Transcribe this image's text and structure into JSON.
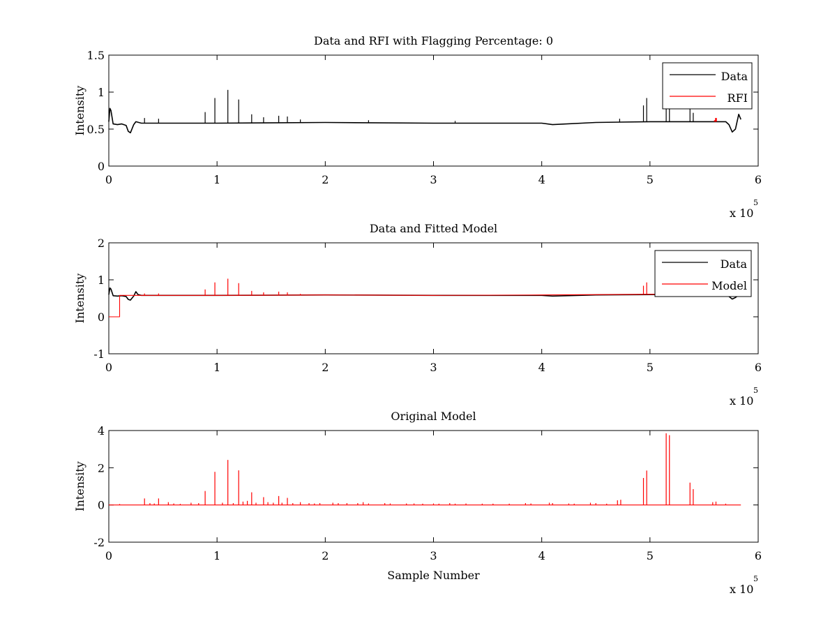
{
  "figure": {
    "background": "#ffffff"
  },
  "chart_data": [
    {
      "type": "line",
      "title": "Data and RFI with Flagging Percentage: 0",
      "xlabel": "",
      "ylabel": "Intensity",
      "xlim": [
        0,
        6
      ],
      "ylim": [
        0,
        1.5
      ],
      "xticks": [
        0,
        1,
        2,
        3,
        4,
        5,
        6
      ],
      "yticks": [
        0,
        0.5,
        1,
        1.5
      ],
      "x_tick_labels": [
        "0",
        "1",
        "2",
        "3",
        "4",
        "5",
        "6"
      ],
      "y_tick_labels": [
        "0",
        "0.5",
        "1",
        "1.5"
      ],
      "x_exponent": "x 10",
      "x_exponent_power": "5",
      "grid": false,
      "legend": "top-right",
      "series": [
        {
          "name": "Data",
          "color": "#000000",
          "role": "data",
          "baseline": [
            [
              0,
              0.6
            ],
            [
              0.01,
              0.78
            ],
            [
              0.02,
              0.75
            ],
            [
              0.04,
              0.57
            ],
            [
              0.08,
              0.56
            ],
            [
              0.12,
              0.57
            ],
            [
              0.16,
              0.55
            ],
            [
              0.18,
              0.47
            ],
            [
              0.2,
              0.45
            ],
            [
              0.23,
              0.56
            ],
            [
              0.25,
              0.6
            ],
            [
              0.3,
              0.58
            ],
            [
              1,
              0.58
            ],
            [
              2,
              0.59
            ],
            [
              3,
              0.58
            ],
            [
              4,
              0.58
            ],
            [
              4.1,
              0.56
            ],
            [
              4.5,
              0.59
            ],
            [
              5,
              0.6
            ],
            [
              5.7,
              0.6
            ],
            [
              5.73,
              0.56
            ],
            [
              5.76,
              0.46
            ],
            [
              5.79,
              0.5
            ],
            [
              5.82,
              0.7
            ],
            [
              5.84,
              0.63
            ]
          ],
          "spikes": [
            [
              0.33,
              0.65
            ],
            [
              0.46,
              0.64
            ],
            [
              0.89,
              0.73
            ],
            [
              0.98,
              0.92
            ],
            [
              1.1,
              1.03
            ],
            [
              1.2,
              0.9
            ],
            [
              1.32,
              0.7
            ],
            [
              1.43,
              0.66
            ],
            [
              1.57,
              0.68
            ],
            [
              1.65,
              0.67
            ],
            [
              1.77,
              0.63
            ],
            [
              2.4,
              0.62
            ],
            [
              3.2,
              0.61
            ],
            [
              4.72,
              0.64
            ],
            [
              4.94,
              0.82
            ],
            [
              4.97,
              0.92
            ],
            [
              5.15,
              0.82
            ],
            [
              5.18,
              0.8
            ],
            [
              5.37,
              0.78
            ],
            [
              5.4,
              0.72
            ]
          ]
        },
        {
          "name": "RFI",
          "color": "#ff0000",
          "role": "rfi",
          "spikes": [
            [
              5.6,
              0.62
            ],
            [
              5.61,
              0.65
            ]
          ]
        }
      ]
    },
    {
      "type": "line",
      "title": "Data and Fitted Model",
      "xlabel": "",
      "ylabel": "Intensity",
      "xlim": [
        0,
        6
      ],
      "ylim": [
        -1,
        2
      ],
      "xticks": [
        0,
        1,
        2,
        3,
        4,
        5,
        6
      ],
      "yticks": [
        -1,
        0,
        1,
        2
      ],
      "x_tick_labels": [
        "0",
        "1",
        "2",
        "3",
        "4",
        "5",
        "6"
      ],
      "y_tick_labels": [
        "-1",
        "0",
        "1",
        "2"
      ],
      "x_exponent": "x 10",
      "x_exponent_power": "5",
      "grid": false,
      "legend": "top-right",
      "series": [
        {
          "name": "Data",
          "color": "#000000",
          "role": "data",
          "baseline": [
            [
              0,
              0.6
            ],
            [
              0.01,
              0.78
            ],
            [
              0.02,
              0.75
            ],
            [
              0.04,
              0.57
            ],
            [
              0.08,
              0.56
            ],
            [
              0.12,
              0.57
            ],
            [
              0.16,
              0.55
            ],
            [
              0.18,
              0.47
            ],
            [
              0.2,
              0.45
            ],
            [
              0.23,
              0.56
            ],
            [
              0.25,
              0.68
            ],
            [
              0.27,
              0.6
            ],
            [
              0.3,
              0.58
            ],
            [
              1,
              0.58
            ],
            [
              2,
              0.59
            ],
            [
              3,
              0.58
            ],
            [
              4,
              0.58
            ],
            [
              4.1,
              0.56
            ],
            [
              4.5,
              0.59
            ],
            [
              5,
              0.6
            ],
            [
              5.7,
              0.6
            ],
            [
              5.73,
              0.55
            ],
            [
              5.76,
              0.48
            ],
            [
              5.79,
              0.52
            ],
            [
              5.84,
              0.63
            ]
          ],
          "spikes": []
        },
        {
          "name": "Model",
          "color": "#ff0000",
          "role": "model",
          "baseline": [
            [
              0,
              0
            ],
            [
              0.1,
              0
            ],
            [
              0.1,
              0.58
            ],
            [
              1,
              0.58
            ],
            [
              2,
              0.59
            ],
            [
              3,
              0.58
            ],
            [
              4,
              0.59
            ],
            [
              5,
              0.61
            ],
            [
              5.84,
              0.62
            ]
          ],
          "spikes": [
            [
              0.33,
              0.63
            ],
            [
              0.46,
              0.63
            ],
            [
              0.89,
              0.74
            ],
            [
              0.98,
              0.93
            ],
            [
              1.1,
              1.03
            ],
            [
              1.2,
              0.91
            ],
            [
              1.32,
              0.7
            ],
            [
              1.43,
              0.66
            ],
            [
              1.57,
              0.68
            ],
            [
              1.65,
              0.66
            ],
            [
              1.77,
              0.62
            ],
            [
              4.94,
              0.84
            ],
            [
              4.97,
              0.93
            ]
          ]
        }
      ]
    },
    {
      "type": "line",
      "title": "Original Model",
      "xlabel": "Sample Number",
      "ylabel": "Intensity",
      "xlim": [
        0,
        6
      ],
      "ylim": [
        -2,
        4
      ],
      "xticks": [
        0,
        1,
        2,
        3,
        4,
        5,
        6
      ],
      "yticks": [
        -2,
        0,
        2,
        4
      ],
      "x_tick_labels": [
        "0",
        "1",
        "2",
        "3",
        "4",
        "5",
        "6"
      ],
      "y_tick_labels": [
        "-2",
        "0",
        "2",
        "4"
      ],
      "x_exponent": "x 10",
      "x_exponent_power": "5",
      "grid": false,
      "legend": "none",
      "series": [
        {
          "color": "#ff0000",
          "role": "model",
          "baseline": [
            [
              0,
              0
            ],
            [
              5.84,
              0
            ]
          ],
          "spikes": [
            [
              0.1,
              0.05
            ],
            [
              0.33,
              0.35
            ],
            [
              0.38,
              0.1
            ],
            [
              0.42,
              0.08
            ],
            [
              0.46,
              0.35
            ],
            [
              0.55,
              0.15
            ],
            [
              0.6,
              0.08
            ],
            [
              0.66,
              0.06
            ],
            [
              0.76,
              0.12
            ],
            [
              0.83,
              0.1
            ],
            [
              0.89,
              0.75
            ],
            [
              0.98,
              1.78
            ],
            [
              1.05,
              0.12
            ],
            [
              1.1,
              2.42
            ],
            [
              1.15,
              0.1
            ],
            [
              1.2,
              1.86
            ],
            [
              1.24,
              0.18
            ],
            [
              1.28,
              0.22
            ],
            [
              1.32,
              0.68
            ],
            [
              1.36,
              0.12
            ],
            [
              1.43,
              0.42
            ],
            [
              1.47,
              0.15
            ],
            [
              1.52,
              0.12
            ],
            [
              1.57,
              0.48
            ],
            [
              1.6,
              0.12
            ],
            [
              1.65,
              0.38
            ],
            [
              1.7,
              0.1
            ],
            [
              1.77,
              0.15
            ],
            [
              1.85,
              0.1
            ],
            [
              1.9,
              0.08
            ],
            [
              1.95,
              0.1
            ],
            [
              2.07,
              0.12
            ],
            [
              2.12,
              0.1
            ],
            [
              2.2,
              0.1
            ],
            [
              2.3,
              0.1
            ],
            [
              2.35,
              0.15
            ],
            [
              2.4,
              0.08
            ],
            [
              2.55,
              0.1
            ],
            [
              2.6,
              0.08
            ],
            [
              2.75,
              0.08
            ],
            [
              2.82,
              0.08
            ],
            [
              2.9,
              0.07
            ],
            [
              3.0,
              0.08
            ],
            [
              3.05,
              0.07
            ],
            [
              3.15,
              0.1
            ],
            [
              3.2,
              0.07
            ],
            [
              3.3,
              0.08
            ],
            [
              3.45,
              0.07
            ],
            [
              3.55,
              0.07
            ],
            [
              3.7,
              0.07
            ],
            [
              3.85,
              0.1
            ],
            [
              3.9,
              0.08
            ],
            [
              4.07,
              0.12
            ],
            [
              4.1,
              0.1
            ],
            [
              4.25,
              0.08
            ],
            [
              4.3,
              0.07
            ],
            [
              4.45,
              0.12
            ],
            [
              4.5,
              0.1
            ],
            [
              4.6,
              0.07
            ],
            [
              4.7,
              0.25
            ],
            [
              4.73,
              0.28
            ],
            [
              4.94,
              1.45
            ],
            [
              4.97,
              1.85
            ],
            [
              5.15,
              3.85
            ],
            [
              5.18,
              3.75
            ],
            [
              5.37,
              1.2
            ],
            [
              5.4,
              0.85
            ],
            [
              5.58,
              0.15
            ],
            [
              5.61,
              0.18
            ],
            [
              5.7,
              0.07
            ]
          ]
        }
      ]
    }
  ]
}
